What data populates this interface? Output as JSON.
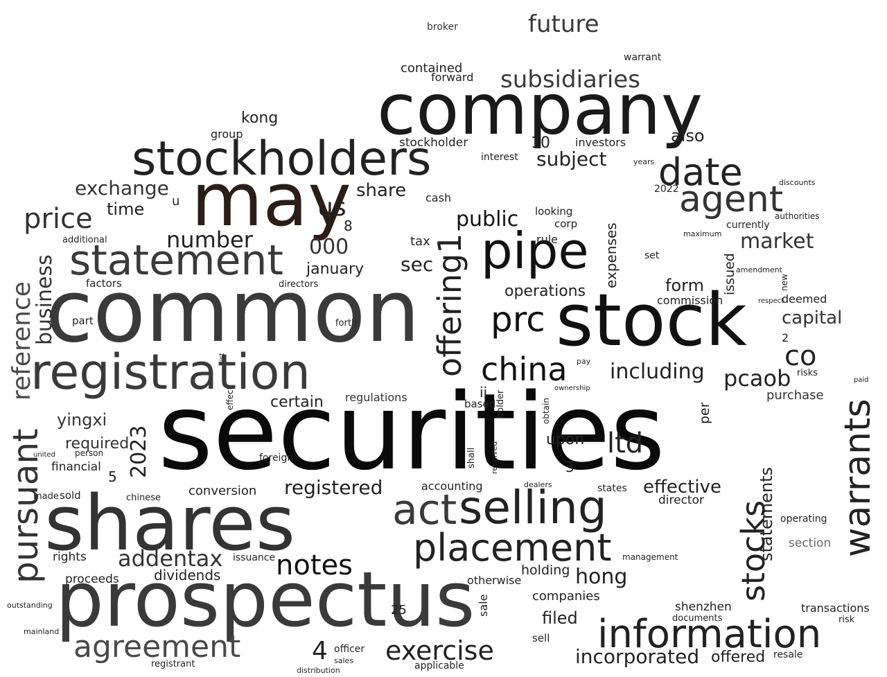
{
  "words": {
    "securities": "securities",
    "common": "common",
    "stock": "stock",
    "company": "company",
    "prospectus": "prospectus",
    "shares": "shares",
    "may": "may",
    "stockholders": "stockholders",
    "registration": "registration",
    "statement": "statement",
    "pipe": "pipe",
    "selling": "selling",
    "placement": "placement",
    "information": "information",
    "warrants": "warrants",
    "date": "date",
    "agent": "agent",
    "agreement": "agreement",
    "pursuant": "pursuant",
    "reference": "reference",
    "china": "china",
    "prc": "prc",
    "act": "act",
    "offering1": "offering1",
    "stocks": "stocks",
    "exercise": "exercise",
    "notes": "notes",
    "subsidiaries": "subsidiaries",
    "future": "future",
    "exchange": "exchange",
    "price": "price",
    "business": "business",
    "number": "number",
    "market": "market",
    "including": "including",
    "pcaob": "pcaob",
    "co": "co",
    "ltd": "ltd",
    "addentax": "addentax",
    "incorporated": "incorporated",
    "offered": "offered",
    "hong": "hong",
    "filed": "filed",
    "registered": "registered",
    "effective": "effective",
    "capital": "capital",
    "share": "share",
    "us": "us",
    "public": "public",
    "subject": "subject",
    "also": "also",
    "contained": "contained",
    "kong": "kong",
    "yingxi": "yingxi",
    "y2023": "2023",
    "n000": "000",
    "january": "january",
    "operations": "operations",
    "sec": "sec",
    "form": "form",
    "statements": "statements",
    "expenses": "expenses",
    "dividends": "dividends",
    "n4": "4",
    "n10": "10",
    "time": "time",
    "certain": "certain",
    "companies": "companies",
    "holding": "holding",
    "conversion": "conversion",
    "upon": "upon",
    "required": "required",
    "financial": "financial",
    "accounting": "accounting",
    "director": "director",
    "shenzhen": "shenzhen",
    "documents": "documents",
    "transactions": "transactions",
    "purchase": "purchase",
    "regulations": "regulations",
    "deemed": "deemed",
    "commission": "commission",
    "issued": "issued",
    "currently": "currently",
    "rights": "rights",
    "proceeds": "proceeds",
    "factors": "factors",
    "additional": "additional",
    "part": "part",
    "forward": "forward",
    "broker": "broker",
    "warrant": "warrant",
    "stockholder": "stockholder",
    "investors": "investors",
    "interest": "interest",
    "group": "group",
    "cash": "cash",
    "tax": "tax",
    "rule": "rule",
    "looking": "looking",
    "corp": "corp",
    "n25": "25",
    "sale": "sale",
    "sell": "sell",
    "otherwise": "otherwise",
    "officer": "officer",
    "applicable": "applicable",
    "registrant": "registrant",
    "resale": "resale",
    "risk": "risk",
    "operating": "operating",
    "section": "section",
    "states": "states",
    "management": "management",
    "based": "based",
    "holder": "holder",
    "foreign": "foreign",
    "chinese": "chinese",
    "sold": "sold",
    "made": "made",
    "issuance": "issuance",
    "sales": "sales",
    "distribution": "distribution",
    "mainland": "mainland",
    "outstanding": "outstanding",
    "person": "person",
    "united": "united",
    "ii": "ii",
    "n3": "3",
    "n5": "5",
    "n8": "8",
    "n2": "2",
    "u": "u",
    "per": "per",
    "set": "set",
    "directors": "directors",
    "risks": "risks",
    "years": "years",
    "y2022": "2022",
    "discounts": "discounts",
    "authorities": "authorities",
    "maximum": "maximum",
    "amendment": "amendment",
    "new": "new",
    "paid": "paid",
    "dealers": "dealers",
    "received": "received",
    "shall": "shall",
    "auditor": "auditor",
    "forth": "forth",
    "respect": "respect",
    "effect": "effect",
    "list": "list",
    "obtain": "obtain",
    "ownership": "ownership",
    "pay": "pay",
    "including2": "pursuant"
  },
  "palette": {
    "dark": "#0a0a0a",
    "mid": "#222222",
    "grey": "#3a3a3a",
    "light": "#4a4a4a",
    "brown": "#2a1e16",
    "muted": "#666666",
    "background": "#ffffff"
  }
}
